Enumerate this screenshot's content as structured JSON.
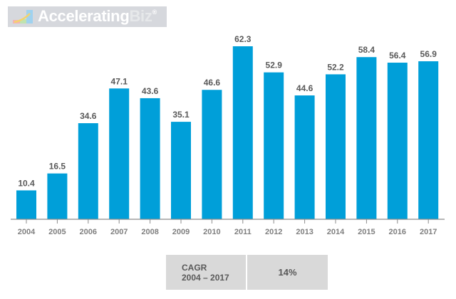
{
  "logo": {
    "name_part1": "Accelerating",
    "name_part2": "Biz",
    "mark": "®",
    "icon": "rising-chart-icon"
  },
  "colors": {
    "bar": "#009fd9",
    "label": "#595959",
    "axis": "#8c8c8c",
    "box": "#d9d9d9"
  },
  "chart_data": {
    "type": "bar",
    "title": "",
    "xlabel": "",
    "ylabel": "",
    "categories": [
      "2004",
      "2005",
      "2006",
      "2007",
      "2008",
      "2009",
      "2010",
      "2011",
      "2012",
      "2013",
      "2014",
      "2015",
      "2016",
      "2017"
    ],
    "values": [
      10.4,
      16.5,
      34.6,
      47.1,
      43.6,
      35.1,
      46.6,
      62.3,
      52.9,
      44.6,
      52.2,
      58.4,
      56.4,
      56.9
    ],
    "data_labels": [
      "10.4",
      "16.5",
      "34.6",
      "47.1",
      "43.6",
      "35.1",
      "46.6",
      "62.3",
      "52.9",
      "44.6",
      "52.2",
      "58.4",
      "56.4",
      "56.9"
    ],
    "ylim": [
      0,
      65
    ],
    "grid": false,
    "legend": "none"
  },
  "cagr": {
    "label_line1": "CAGR",
    "label_line2": "2004 – 2017",
    "value": "14%"
  }
}
